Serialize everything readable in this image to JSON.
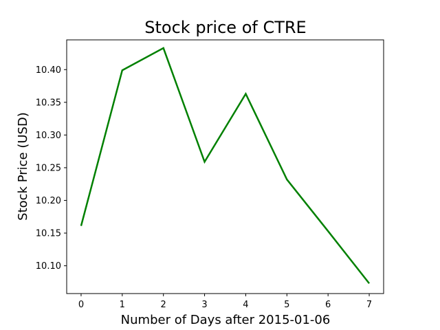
{
  "chart_data": {
    "type": "line",
    "title": "Stock price of CTRE",
    "xlabel": "Number of Days after 2015-01-06",
    "ylabel": "Stock Price (USD)",
    "x": [
      0,
      1,
      2,
      3,
      4,
      5,
      6,
      7
    ],
    "x_tick_labels": [
      "0",
      "1",
      "2",
      "3",
      "4",
      "5",
      "6",
      "7"
    ],
    "y_ticks": [
      10.1,
      10.15,
      10.2,
      10.25,
      10.3,
      10.35,
      10.4
    ],
    "y_tick_labels": [
      "10.10",
      "10.15",
      "10.20",
      "10.25",
      "10.30",
      "10.35",
      "10.40"
    ],
    "xlim": [
      -0.35,
      7.35
    ],
    "ylim": [
      10.0575,
      10.4455
    ],
    "grid": false,
    "series": [
      {
        "color": "#008000",
        "values": [
          10.161,
          10.399,
          10.433,
          10.259,
          10.363,
          10.232,
          10.153,
          10.073
        ]
      }
    ]
  }
}
